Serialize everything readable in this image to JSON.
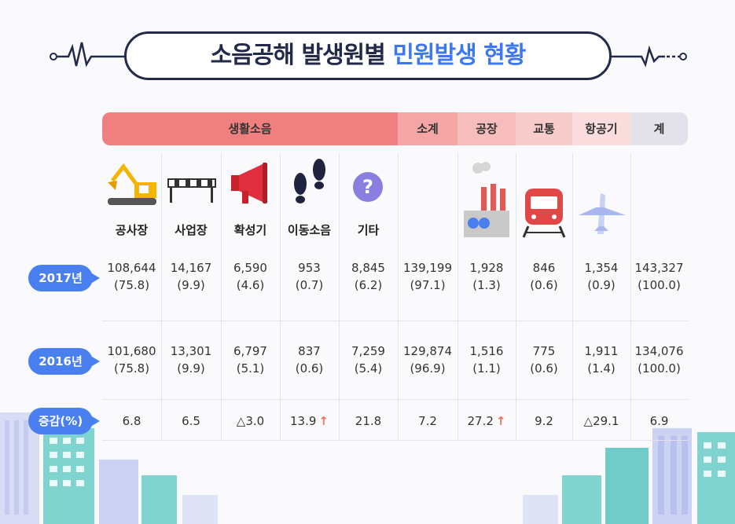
{
  "title": {
    "part1": "소음공해 발생원별",
    "part2": "민원발생 현황"
  },
  "colors": {
    "accent": "#3d78f0",
    "navy": "#222a4a",
    "header_red": "#f08080",
    "header_light": "#f6b7b7",
    "header_lighter": "#fbd6d6",
    "header_gray": "#e3e1ea",
    "up_arrow": "#f07060"
  },
  "headers": {
    "group": "생활소음",
    "subtotal": "소계",
    "factory": "공장",
    "traffic": "교통",
    "aircraft": "항공기",
    "total": "계"
  },
  "categories": [
    "공사장",
    "사업장",
    "확성기",
    "이동소음",
    "기타"
  ],
  "icons": [
    "excavator-icon",
    "barrier-icon",
    "megaphone-icon",
    "footprints-icon",
    "question-icon",
    "factory-icon",
    "train-icon",
    "airplane-icon"
  ],
  "row_labels": {
    "y2017": "2017년",
    "y2016": "2016년",
    "change": "증감(%)"
  },
  "chart_data": {
    "type": "table",
    "columns": [
      "공사장",
      "사업장",
      "확성기",
      "이동소음",
      "기타",
      "소계",
      "공장",
      "교통",
      "항공기",
      "계"
    ],
    "rows": [
      {
        "label": "2017년",
        "counts": [
          "108,644",
          "14,167",
          "6,590",
          "953",
          "8,845",
          "139,199",
          "1,928",
          "846",
          "1,354",
          "143,327"
        ],
        "shares": [
          "(75.8)",
          "(9.9)",
          "(4.6)",
          "(0.7)",
          "(6.2)",
          "(97.1)",
          "(1.3)",
          "(0.6)",
          "(0.9)",
          "(100.0)"
        ]
      },
      {
        "label": "2016년",
        "counts": [
          "101,680",
          "13,301",
          "6,797",
          "837",
          "7,259",
          "129,874",
          "1,516",
          "775",
          "1,911",
          "134,076"
        ],
        "shares": [
          "(75.8)",
          "(9.9)",
          "(5.1)",
          "(0.6)",
          "(5.4)",
          "(96.9)",
          "(1.1)",
          "(0.6)",
          "(1.4)",
          "(100.0)"
        ]
      }
    ],
    "change": {
      "label": "증감(%)",
      "values": [
        "6.8",
        "6.5",
        "△3.0",
        "13.9",
        "21.8",
        "7.2",
        "27.2",
        "9.2",
        "△29.1",
        "6.9"
      ],
      "up_arrows": [
        3,
        6
      ]
    }
  }
}
